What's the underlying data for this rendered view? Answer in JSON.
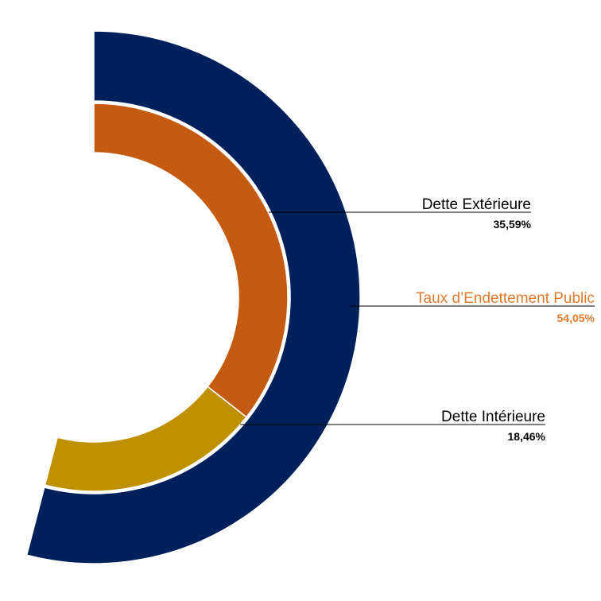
{
  "chart_data": {
    "type": "pie",
    "style": "nested-arc-donut",
    "title": "",
    "total": {
      "name": "Taux d’Endettement Public",
      "value": 54.05,
      "value_label": "54,05%",
      "color": "#00205b",
      "text_color": "#e07b2e"
    },
    "series": [
      {
        "name": "Dette Extérieure",
        "value": 35.59,
        "value_label": "35,59%",
        "color": "#c55a11",
        "text_color": "#000000"
      },
      {
        "name": "Dette Intérieure",
        "value": 18.46,
        "value_label": "18,46%",
        "color": "#bf9000",
        "text_color": "#000000"
      }
    ],
    "full_scale": 100
  }
}
